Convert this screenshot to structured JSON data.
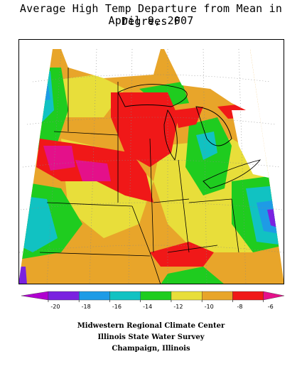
{
  "title": {
    "line1": "Average High Temp Departure from Mean in Degrees F",
    "line2": "April 9, 2007"
  },
  "legend": {
    "colors": [
      "#b000d0",
      "#7a22e0",
      "#1e9be6",
      "#11c2c2",
      "#1fcc1f",
      "#e8de3a",
      "#e8a52a",
      "#f01818",
      "#e4108a"
    ],
    "ticks": [
      "-20",
      "-18",
      "-16",
      "-14",
      "-12",
      "-10",
      "-8",
      "-6"
    ]
  },
  "credits": {
    "line1": "Midwestern Regional Climate Center",
    "line2": "Illinois State Water Survey",
    "line3": "Champaign, Illinois"
  }
}
